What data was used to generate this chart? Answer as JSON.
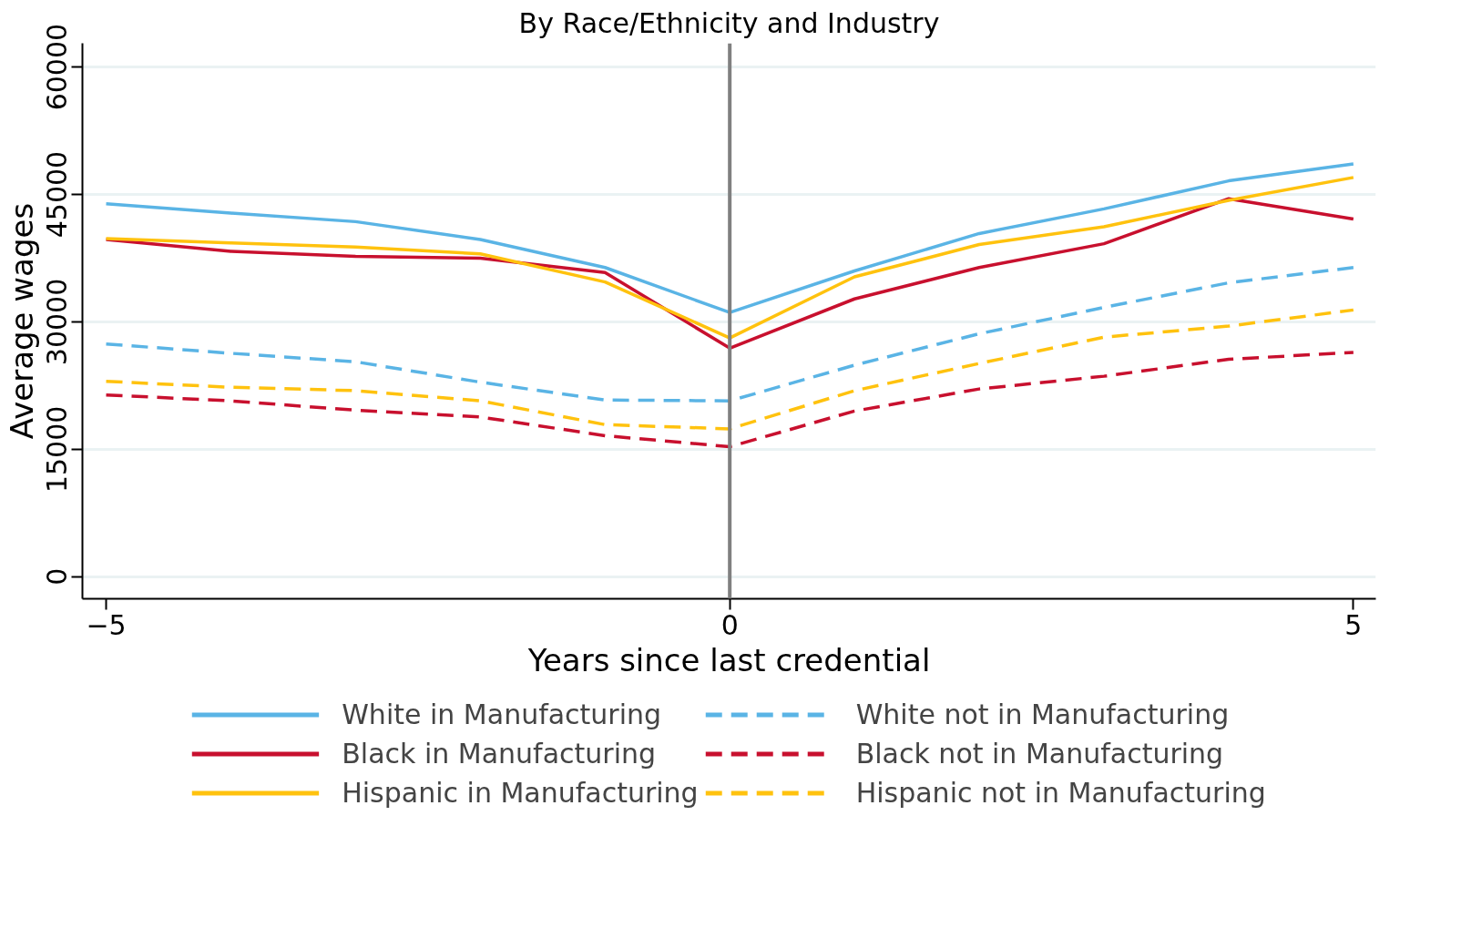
{
  "chart_data": {
    "type": "line",
    "title": "By Race/Ethnicity and Industry",
    "xlabel": "Years since last credential",
    "ylabel": "Average wages",
    "x": [
      -5,
      -4,
      -3,
      -2,
      -1,
      0,
      1,
      2,
      3,
      4,
      5
    ],
    "xlim": [
      -5.19,
      5.18
    ],
    "xticks": [
      -5,
      0,
      5
    ],
    "ylim": [
      -2600,
      62800
    ],
    "yticks": [
      0,
      15000,
      30000,
      45000,
      60000
    ],
    "grid": "y",
    "legend": "bottom",
    "marker": "none",
    "ref_lines": [
      {
        "axis": "x",
        "value": 0,
        "color": "#808080"
      }
    ],
    "series": [
      {
        "name": "White in Manufacturing",
        "color": "#5ab4e5",
        "line_style": "solid",
        "values": [
          43900,
          42800,
          41800,
          39700,
          36400,
          31100,
          36000,
          40400,
          43300,
          46600,
          48600
        ]
      },
      {
        "name": "Black in Manufacturing",
        "color": "#c8102e",
        "line_style": "solid",
        "values": [
          39700,
          38300,
          37700,
          37500,
          35800,
          26900,
          32700,
          36400,
          39200,
          44500,
          42100
        ]
      },
      {
        "name": "Hispanic in Manufacturing",
        "color": "#ffc20e",
        "line_style": "solid",
        "values": [
          39800,
          39300,
          38800,
          38000,
          34700,
          28100,
          35300,
          39100,
          41200,
          44300,
          47000
        ]
      },
      {
        "name": "White not in Manufacturing",
        "color": "#5ab4e5",
        "line_style": "dashed",
        "values": [
          27400,
          26300,
          25300,
          22900,
          20800,
          20700,
          24900,
          28600,
          31700,
          34600,
          36400
        ]
      },
      {
        "name": "Black not in Manufacturing",
        "color": "#c8102e",
        "line_style": "dashed",
        "values": [
          21400,
          20700,
          19600,
          18800,
          16600,
          15300,
          19500,
          22100,
          23600,
          25600,
          26400
        ]
      },
      {
        "name": "Hispanic not in Manufacturing",
        "color": "#ffc20e",
        "line_style": "dashed",
        "values": [
          23000,
          22300,
          21900,
          20700,
          17900,
          17400,
          21900,
          25100,
          28200,
          29500,
          31400
        ]
      }
    ]
  }
}
